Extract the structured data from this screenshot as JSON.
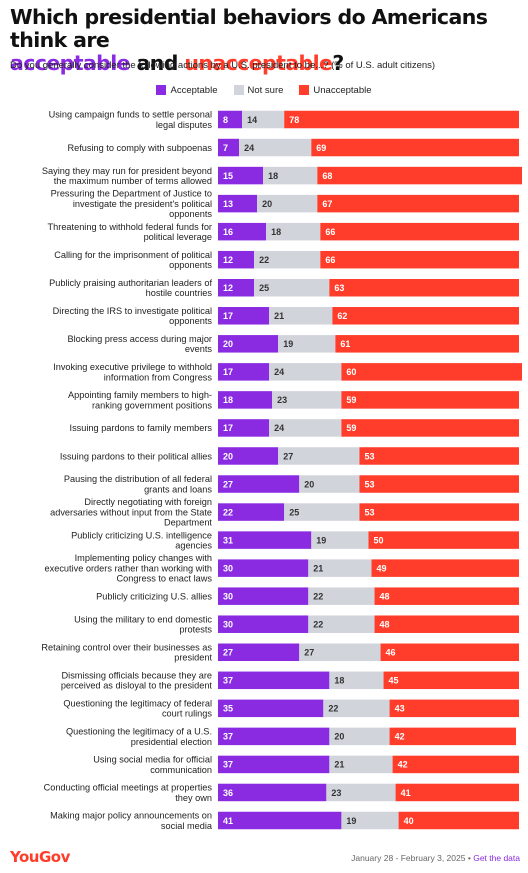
{
  "title": {
    "line1": "Which presidential behaviors do Americans think are",
    "acceptable": "acceptable",
    "and": "and",
    "unacceptable": "unacceptable",
    "qmark": "?"
  },
  "subtitle": "Do you generally consider the following actions by a U.S. president to be...? (% of U.S. adult citizens)",
  "footer": {
    "logo": "YouGov",
    "dates": "January 28 - February 3, 2025",
    "separator": "•",
    "link": "Get the data"
  },
  "colors": {
    "acceptable": "#8a2be2",
    "not_sure": "#d2d4dc",
    "unacceptable": "#ff3d2a"
  },
  "chart_data": {
    "type": "bar",
    "orientation": "horizontal",
    "stacked": true,
    "legend_position": "top-center",
    "grid": false,
    "xlim": [
      0,
      100
    ],
    "categories": [
      "Using campaign funds to settle personal legal disputes",
      "Refusing to comply with subpoenas",
      "Saying they may run for president beyond the maximum number of terms allowed",
      "Pressuring the Department of Justice to investigate the president's political opponents",
      "Threatening to withhold federal funds for political leverage",
      "Calling for the imprisonment of political opponents",
      "Publicly praising authoritarian leaders of hostile countries",
      "Directing the IRS to investigate political opponents",
      "Blocking press access during major events",
      "Invoking executive privilege to withhold information from Congress",
      "Appointing family members to high-ranking government positions",
      "Issuing pardons to family members",
      "Issuing pardons to their political allies",
      "Pausing the distribution of all federal grants and loans",
      "Directly negotiating with foreign adversaries without input from the State Department",
      "Publicly criticizing U.S. intelligence agencies",
      "Implementing policy changes with executive orders rather than working with Congress to enact laws",
      "Publicly criticizing U.S. allies",
      "Using the military to end domestic protests",
      "Retaining control over their businesses as president",
      "Dismissing officials because they are perceived as disloyal to the president",
      "Questioning the legitimacy of federal court rulings",
      "Questioning the legitimacy of a U.S. presidential election",
      "Using social media for official communication",
      "Conducting official meetings at properties they own",
      "Making major policy announcements on social media"
    ],
    "label_lines": [
      [
        "Using campaign funds to settle personal",
        "legal disputes"
      ],
      [
        "Refusing to comply with subpoenas"
      ],
      [
        "Saying they may run for president beyond",
        "the maximum number of terms allowed"
      ],
      [
        "Pressuring the Department of Justice to",
        "investigate the president's political",
        "opponents"
      ],
      [
        "Threatening to withhold federal funds for",
        "political leverage"
      ],
      [
        "Calling for the imprisonment of political",
        "opponents"
      ],
      [
        "Publicly praising authoritarian leaders of",
        "hostile countries"
      ],
      [
        "Directing the IRS to investigate political",
        "opponents"
      ],
      [
        "Blocking press access during major",
        "events"
      ],
      [
        "Invoking executive privilege to withhold",
        "information from Congress"
      ],
      [
        "Appointing family members to high-",
        "ranking government positions"
      ],
      [
        "Issuing pardons to family members"
      ],
      [
        "Issuing pardons to their political allies"
      ],
      [
        "Pausing the distribution of all federal",
        "grants and loans"
      ],
      [
        "Directly negotiating with foreign",
        "adversaries without input from the State",
        "Department"
      ],
      [
        "Publicly criticizing U.S. intelligence",
        "agencies"
      ],
      [
        "Implementing policy changes with",
        "executive orders rather than working with",
        "Congress to enact laws"
      ],
      [
        "Publicly criticizing U.S. allies"
      ],
      [
        "Using the military to end domestic",
        "protests"
      ],
      [
        "Retaining control over their businesses as",
        "president"
      ],
      [
        "Dismissing officials because they are",
        "perceived as disloyal to the president"
      ],
      [
        "Questioning the legitimacy of federal",
        "court rulings"
      ],
      [
        "Questioning the legitimacy of a U.S.",
        "presidential election"
      ],
      [
        "Using social media for official",
        "communication"
      ],
      [
        "Conducting official meetings at properties",
        "they own"
      ],
      [
        "Making major policy announcements on",
        "social media"
      ]
    ],
    "series": [
      {
        "name": "Acceptable",
        "values": [
          8,
          7,
          15,
          13,
          16,
          12,
          12,
          17,
          20,
          17,
          18,
          17,
          20,
          27,
          22,
          31,
          30,
          30,
          30,
          27,
          37,
          35,
          37,
          37,
          36,
          41
        ]
      },
      {
        "name": "Not sure",
        "values": [
          14,
          24,
          18,
          20,
          18,
          22,
          25,
          21,
          19,
          24,
          23,
          24,
          27,
          20,
          25,
          19,
          21,
          22,
          22,
          27,
          18,
          22,
          20,
          21,
          23,
          19
        ]
      },
      {
        "name": "Unacceptable",
        "values": [
          78,
          69,
          68,
          67,
          66,
          66,
          63,
          62,
          61,
          60,
          59,
          59,
          53,
          53,
          53,
          50,
          49,
          48,
          48,
          46,
          45,
          43,
          42,
          42,
          41,
          40
        ]
      }
    ]
  }
}
